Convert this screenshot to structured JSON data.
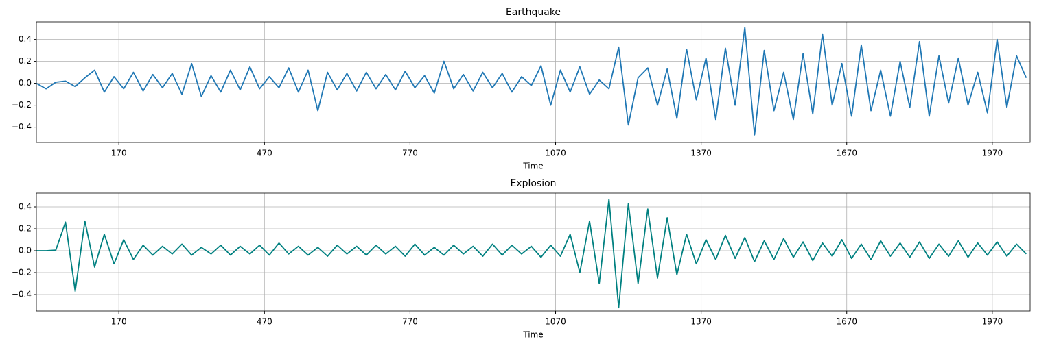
{
  "chart_data": [
    {
      "type": "line",
      "title": "Earthquake",
      "xlabel": "Time",
      "color": "#1f77b4",
      "grid": true,
      "x": [
        0,
        20,
        40,
        60,
        80,
        100,
        120,
        140,
        160,
        180,
        200,
        220,
        240,
        260,
        280,
        300,
        320,
        340,
        360,
        380,
        400,
        420,
        440,
        460,
        480,
        500,
        520,
        540,
        560,
        580,
        600,
        620,
        640,
        660,
        680,
        700,
        720,
        740,
        760,
        780,
        800,
        820,
        840,
        860,
        880,
        900,
        920,
        940,
        960,
        980,
        1000,
        1020,
        1040,
        1060,
        1080,
        1100,
        1120,
        1140,
        1160,
        1180,
        1200,
        1220,
        1240,
        1260,
        1280,
        1300,
        1320,
        1340,
        1360,
        1380,
        1400,
        1420,
        1440,
        1460,
        1480,
        1500,
        1520,
        1540,
        1560,
        1580,
        1600,
        1620,
        1640,
        1660,
        1680,
        1700,
        1720,
        1740,
        1760,
        1780,
        1800,
        1820,
        1840,
        1860,
        1880,
        1900,
        1920,
        1940,
        1960,
        1980,
        2000,
        2020,
        2040
      ],
      "values": [
        0.0,
        -0.05,
        0.01,
        0.02,
        -0.03,
        0.05,
        0.12,
        -0.08,
        0.06,
        -0.05,
        0.1,
        -0.07,
        0.08,
        -0.04,
        0.09,
        -0.1,
        0.18,
        -0.12,
        0.07,
        -0.08,
        0.12,
        -0.06,
        0.15,
        -0.05,
        0.06,
        -0.04,
        0.14,
        -0.08,
        0.12,
        -0.25,
        0.1,
        -0.06,
        0.09,
        -0.07,
        0.1,
        -0.05,
        0.08,
        -0.06,
        0.11,
        -0.04,
        0.07,
        -0.09,
        0.2,
        -0.05,
        0.08,
        -0.07,
        0.1,
        -0.04,
        0.09,
        -0.08,
        0.06,
        -0.02,
        0.16,
        -0.2,
        0.12,
        -0.08,
        0.15,
        -0.1,
        0.03,
        -0.05,
        0.33,
        -0.38,
        0.05,
        0.14,
        -0.2,
        0.13,
        -0.32,
        0.31,
        -0.15,
        0.23,
        -0.33,
        0.32,
        -0.2,
        0.51,
        -0.47,
        0.3,
        -0.25,
        0.1,
        -0.33,
        0.27,
        -0.28,
        0.45,
        -0.2,
        0.18,
        -0.3,
        0.35,
        -0.25,
        0.12,
        -0.3,
        0.2,
        -0.22,
        0.38,
        -0.3,
        0.25,
        -0.18,
        0.23,
        -0.2,
        0.1,
        -0.27,
        0.4,
        -0.22,
        0.25,
        0.05
      ],
      "xlim": [
        0,
        2048
      ],
      "xticks": [
        170,
        470,
        770,
        1070,
        1370,
        1670,
        1970
      ],
      "ylim": [
        -0.54,
        0.56
      ],
      "yticks": [
        {
          "value": -0.4,
          "label": "−0.4"
        },
        {
          "value": -0.2,
          "label": "−0.2"
        },
        {
          "value": 0,
          "label": "0.0"
        },
        0.2,
        0.4
      ]
    },
    {
      "type": "line",
      "title": "Explosion",
      "xlabel": "Time",
      "color": "#008080",
      "grid": true,
      "x": [
        0,
        20,
        40,
        60,
        80,
        100,
        120,
        140,
        160,
        180,
        200,
        220,
        240,
        260,
        280,
        300,
        320,
        340,
        360,
        380,
        400,
        420,
        440,
        460,
        480,
        500,
        520,
        540,
        560,
        580,
        600,
        620,
        640,
        660,
        680,
        700,
        720,
        740,
        760,
        780,
        800,
        820,
        840,
        860,
        880,
        900,
        920,
        940,
        960,
        980,
        1000,
        1020,
        1040,
        1060,
        1080,
        1100,
        1120,
        1140,
        1160,
        1180,
        1200,
        1220,
        1240,
        1260,
        1280,
        1300,
        1320,
        1340,
        1360,
        1380,
        1400,
        1420,
        1440,
        1460,
        1480,
        1500,
        1520,
        1540,
        1560,
        1580,
        1600,
        1620,
        1640,
        1660,
        1680,
        1700,
        1720,
        1740,
        1760,
        1780,
        1800,
        1820,
        1840,
        1860,
        1880,
        1900,
        1920,
        1940,
        1960,
        1980,
        2000,
        2020,
        2040
      ],
      "values": [
        0,
        0,
        0.005,
        0.26,
        -0.37,
        0.27,
        -0.15,
        0.15,
        -0.12,
        0.1,
        -0.08,
        0.05,
        -0.04,
        0.04,
        -0.03,
        0.06,
        -0.04,
        0.03,
        -0.03,
        0.05,
        -0.04,
        0.04,
        -0.03,
        0.05,
        -0.04,
        0.07,
        -0.03,
        0.04,
        -0.04,
        0.03,
        -0.05,
        0.05,
        -0.03,
        0.04,
        -0.04,
        0.05,
        -0.03,
        0.04,
        -0.05,
        0.06,
        -0.04,
        0.03,
        -0.04,
        0.05,
        -0.03,
        0.04,
        -0.05,
        0.06,
        -0.04,
        0.05,
        -0.03,
        0.04,
        -0.06,
        0.05,
        -0.05,
        0.15,
        -0.2,
        0.27,
        -0.3,
        0.47,
        -0.52,
        0.43,
        -0.3,
        0.38,
        -0.25,
        0.3,
        -0.22,
        0.15,
        -0.12,
        0.1,
        -0.08,
        0.14,
        -0.07,
        0.12,
        -0.1,
        0.09,
        -0.08,
        0.11,
        -0.06,
        0.08,
        -0.09,
        0.07,
        -0.05,
        0.1,
        -0.07,
        0.06,
        -0.08,
        0.09,
        -0.05,
        0.07,
        -0.06,
        0.08,
        -0.07,
        0.06,
        -0.05,
        0.09,
        -0.06,
        0.07,
        -0.04,
        0.08,
        -0.05,
        0.06,
        -0.03
      ],
      "xlim": [
        0,
        2048
      ],
      "xticks": [
        170,
        470,
        770,
        1070,
        1370,
        1670,
        1970
      ],
      "ylim": [
        -0.55,
        0.525
      ],
      "yticks": [
        {
          "value": -0.4,
          "label": "−0.4"
        },
        {
          "value": -0.2,
          "label": "−0.2"
        },
        {
          "value": 0,
          "label": "0.0"
        },
        0.2,
        0.4
      ]
    }
  ]
}
